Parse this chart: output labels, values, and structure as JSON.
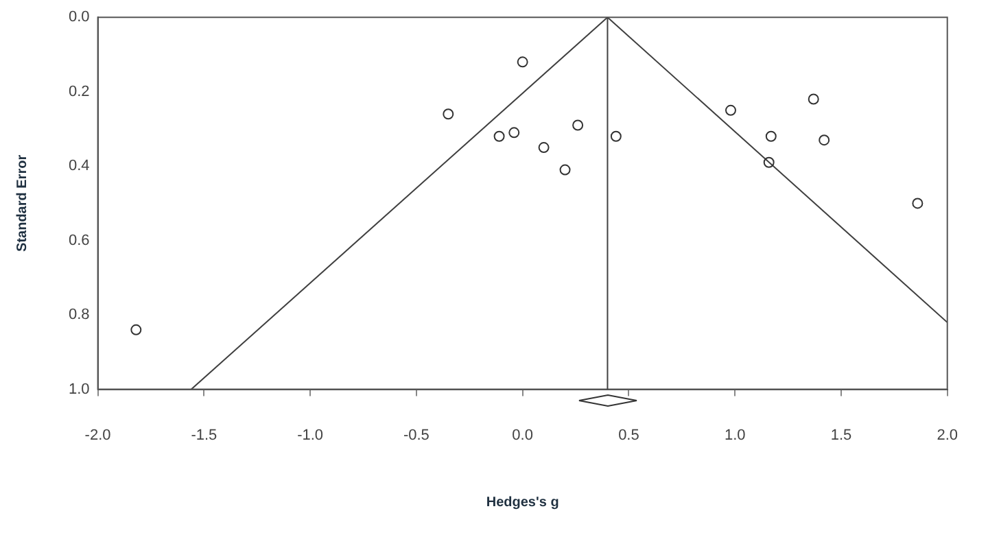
{
  "chart_data": {
    "type": "scatter",
    "xlabel": "Hedges's g",
    "ylabel": "Standard Error",
    "xlim": [
      -2,
      2
    ],
    "xticks": [
      {
        "value": -2,
        "label": "-2.0"
      },
      {
        "value": -1.5,
        "label": "-1.5"
      },
      {
        "value": -1,
        "label": "-1.0"
      },
      {
        "value": -0.5,
        "label": "-0.5"
      },
      {
        "value": 0,
        "label": "0.0"
      },
      {
        "value": 0.5,
        "label": "0.5"
      },
      {
        "value": 1,
        "label": "1.0"
      },
      {
        "value": 1.5,
        "label": "1.5"
      },
      {
        "value": 2,
        "label": "2.0"
      }
    ],
    "ylim": [
      1,
      0
    ],
    "yticks": [
      {
        "value": 0,
        "label": "0.0"
      },
      {
        "value": 0.2,
        "label": "0.2"
      },
      {
        "value": 0.4,
        "label": "0.4"
      },
      {
        "value": 0.6,
        "label": "0.6"
      },
      {
        "value": 0.8,
        "label": "0.8"
      },
      {
        "value": 1,
        "label": "1.0"
      }
    ],
    "marker": "circle",
    "grid": false,
    "legend": false,
    "ref_lines": [
      {
        "axis": "x",
        "value": 0.4,
        "color": "#404040"
      }
    ],
    "series": [
      {
        "type": "scatter",
        "color": "#333333",
        "x": [
          -1.82,
          -0.35,
          0.0,
          -0.11,
          -0.04,
          0.1,
          0.2,
          0.26,
          0.44,
          0.98,
          1.17,
          1.16,
          1.37,
          1.42,
          1.86
        ],
        "values": [
          0.84,
          0.26,
          0.12,
          0.32,
          0.31,
          0.35,
          0.41,
          0.29,
          0.32,
          0.25,
          0.32,
          0.39,
          0.22,
          0.33,
          0.5
        ]
      },
      {
        "type": "line",
        "color": "#404040",
        "marker": "none",
        "x": [
          -1.56,
          0.4,
          2.0
        ],
        "values": [
          1.0,
          0.0,
          0.82
        ]
      }
    ]
  }
}
